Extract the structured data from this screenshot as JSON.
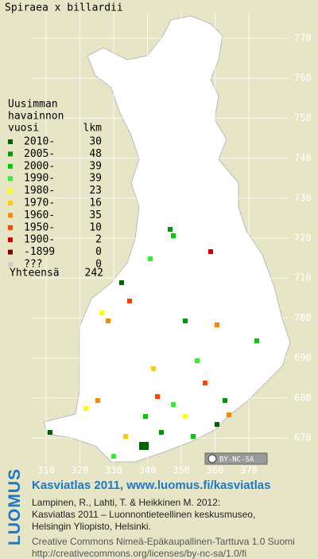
{
  "title": "Spiraea x billardii",
  "legend": {
    "heading": [
      "Uusimman",
      "havainnon"
    ],
    "col_year": "vuosi",
    "col_count": "lkm",
    "rows": [
      {
        "label": "2010-",
        "count": 30,
        "color": "#006400"
      },
      {
        "label": "2005-",
        "count": 48,
        "color": "#009a00"
      },
      {
        "label": "2000-",
        "count": 39,
        "color": "#00cc00"
      },
      {
        "label": "1990-",
        "count": 39,
        "color": "#33ee33"
      },
      {
        "label": "1980-",
        "count": 23,
        "color": "#ffff00"
      },
      {
        "label": "1970-",
        "count": 16,
        "color": "#ffcc00"
      },
      {
        "label": "1960-",
        "count": 35,
        "color": "#ff8800"
      },
      {
        "label": "1950-",
        "count": 10,
        "color": "#ff4400"
      },
      {
        "label": "1900-",
        "count": 2,
        "color": "#cc0000"
      },
      {
        "label": "-1899",
        "count": 0,
        "color": "#800000"
      },
      {
        "label": "???",
        "count": 0,
        "color": "#cccccc"
      }
    ],
    "total_label": "Yhteensä",
    "total": 242
  },
  "grid": {
    "x_labels": [
      310,
      320,
      330,
      340,
      350,
      360,
      370
    ],
    "y_labels": [
      770,
      760,
      750,
      740,
      730,
      720,
      710,
      700,
      690,
      680,
      670
    ]
  },
  "license_badge": "BY-NC-SA",
  "footer": {
    "brand": "LUOMUS",
    "title": "Kasviatlas 2011, www.luomus.fi/kasviatlas",
    "citation": [
      "Lampinen, R., Lahti, T. & Heikkinen M. 2012:",
      "Kasviatlas 2011 – Luonnontieteellinen keskusmuseo,",
      "Helsingin Yliopisto, Helsinki."
    ],
    "license": [
      "Creative Commons Nimeä-Epäkaupallinen-Tarttuva 1.0 Suomi",
      "http://creativecommons.org/licenses/by-nc-sa/1.0/fi"
    ]
  }
}
